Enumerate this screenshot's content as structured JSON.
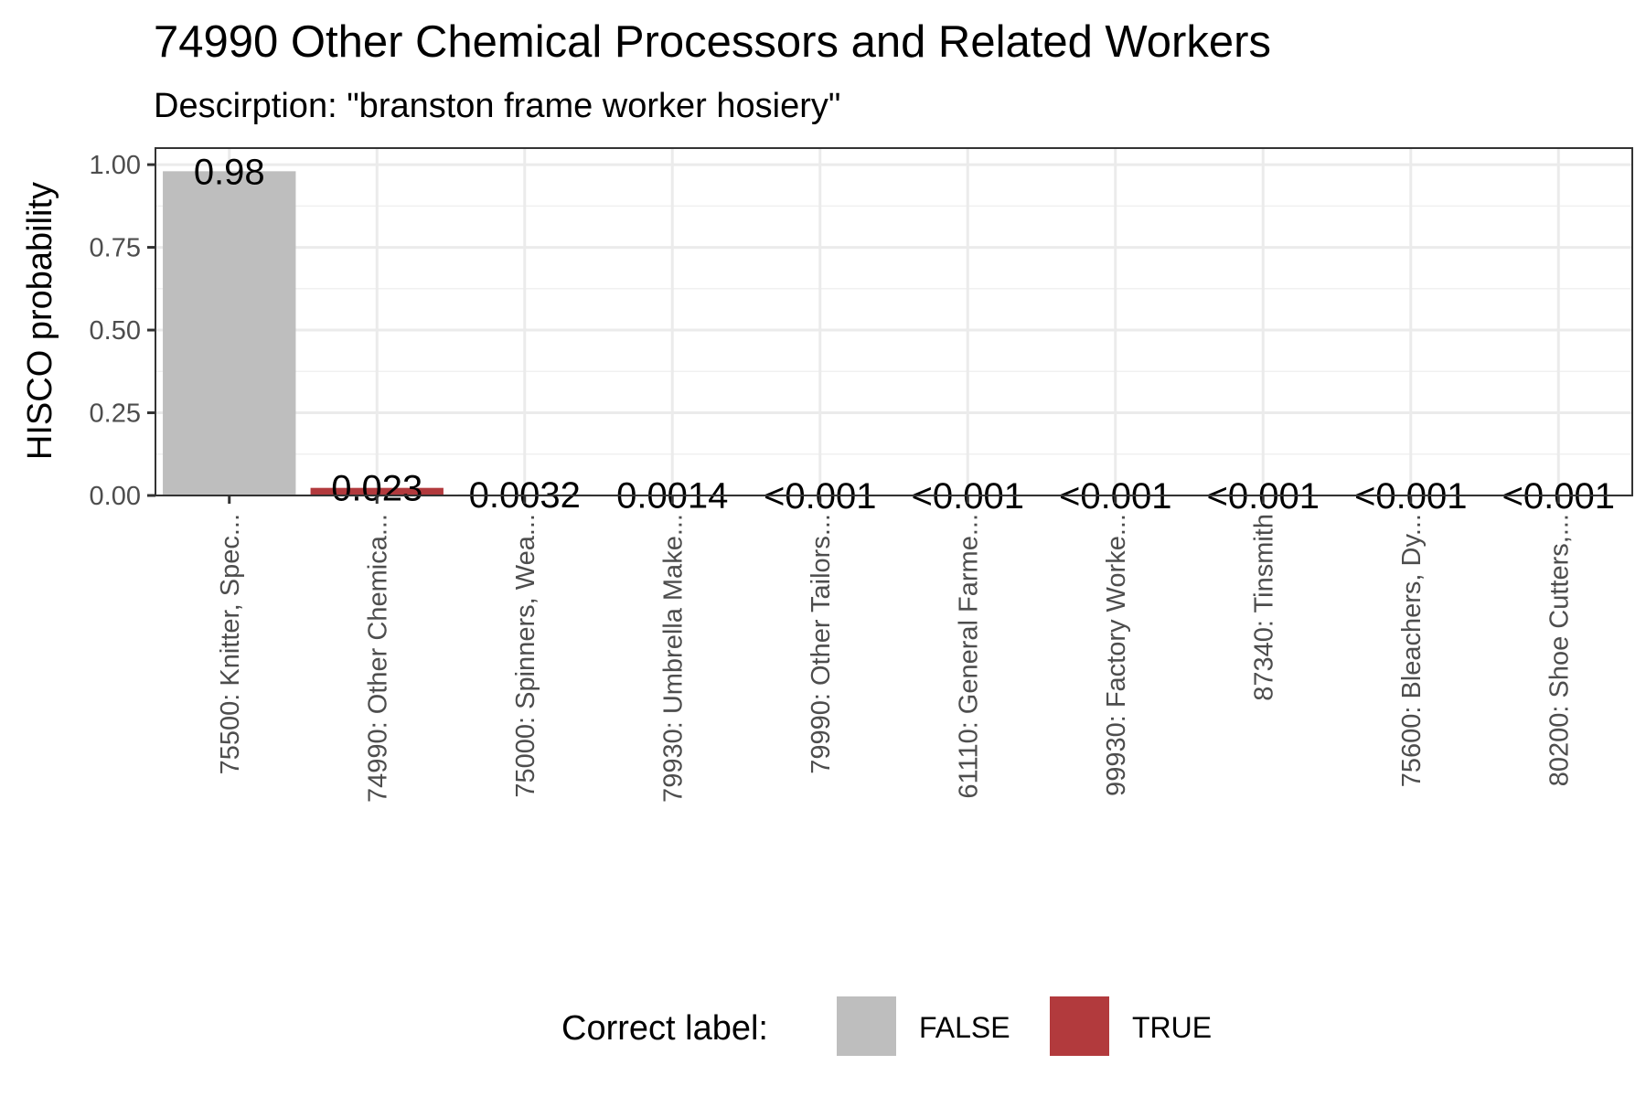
{
  "chart_data": {
    "type": "bar",
    "title": "74990 Other Chemical Processors and Related Workers",
    "subtitle": "Descirption: \"branston frame worker hosiery\"",
    "xlabel": "",
    "ylabel": "HISCO probability",
    "ylim": [
      0,
      1.05
    ],
    "yticks": [
      0,
      0.25,
      0.5,
      0.75,
      1.0
    ],
    "ytick_labels": [
      "0.00",
      "0.25",
      "0.50",
      "0.75",
      "1.00"
    ],
    "grid": true,
    "legend_position": "bottom",
    "legend_title": "Correct label:",
    "legend": [
      {
        "label": "FALSE",
        "color": "#bebebe"
      },
      {
        "label": "TRUE",
        "color": "#b23a3d"
      }
    ],
    "categories": [
      "75500: Knitter, Spec...",
      "74990: Other Chemica...",
      "75000: Spinners, Wea...",
      "79930: Umbrella Make...",
      "79990: Other Tailors...",
      "61110: General Farme...",
      "99930: Factory Worke...",
      "87340: Tinsmith",
      "75600: Bleachers, Dy...",
      "80200: Shoe Cutters,..."
    ],
    "values": [
      0.98,
      0.023,
      0.0032,
      0.0014,
      0.0005,
      0.0004,
      0.0003,
      0.0002,
      0.0002,
      0.0001
    ],
    "correct": [
      false,
      true,
      false,
      false,
      false,
      false,
      false,
      false,
      false,
      false
    ],
    "data_labels": [
      "0.98",
      "0.023",
      "0.0032",
      "0.0014",
      "<0.001",
      "<0.001",
      "<0.001",
      "<0.001",
      "<0.001",
      "<0.001"
    ]
  }
}
